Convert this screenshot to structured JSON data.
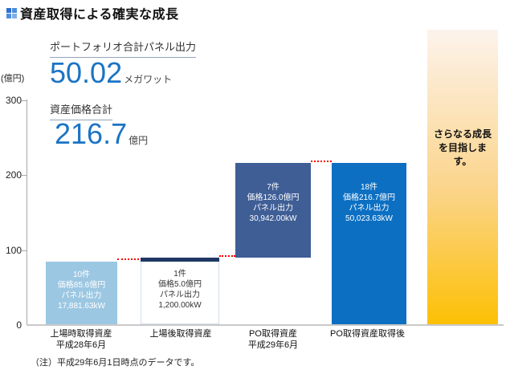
{
  "title": "資産取得による確実な成長",
  "summary": {
    "panel_output_label": "ポートフォリオ合計パネル出力",
    "panel_output_value": "50.02",
    "panel_output_unit": "メガワット",
    "asset_price_label": "資産価格合計",
    "asset_price_value": "216.7",
    "asset_price_unit": "億円"
  },
  "note": "（注）平成29年6月1日時点のデータです。",
  "chart_data": {
    "type": "bar",
    "subtype": "waterfall",
    "title": "資産取得による確実な成長",
    "axis_unit": "(億円)",
    "ylabel": "億円",
    "ylim": [
      0,
      300
    ],
    "yticks": [
      "0",
      "100",
      "200",
      "300"
    ],
    "grid": false,
    "connector_color": "#ff0000",
    "bars": [
      {
        "category": [
          "上場時取得資産",
          "平成28年6月"
        ],
        "base": 0,
        "top": 85.6,
        "value": 85.6,
        "color": "#9cc7e2",
        "text_color": "#ffffff",
        "lines": [
          "10件",
          "価格85.6億円",
          "パネル出力",
          "17,881.63kW"
        ]
      },
      {
        "category": [
          "上場後取得資産"
        ],
        "base": 85.6,
        "top": 90.6,
        "value": 5.0,
        "color": "#1f3864",
        "text_color": "#333333",
        "lines": [
          "1件",
          "価格5.0億円",
          "パネル出力",
          "1,200.00kW"
        ]
      },
      {
        "category": [
          "PO取得資産",
          "平成29年6月"
        ],
        "base": 90.6,
        "top": 216.6,
        "value": 126.0,
        "color": "#3f5e96",
        "text_color": "#ffffff",
        "lines": [
          "7件",
          "価格126.0億円",
          "パネル出力",
          "30,942.00kW"
        ]
      },
      {
        "category": [
          "PO取得資産取得後"
        ],
        "base": 0,
        "top": 216.7,
        "value": 216.7,
        "color": "#0d6fc2",
        "text_color": "#ffffff",
        "lines": [
          "18件",
          "価格216.7億円",
          "パネル出力",
          "50,023.63kW"
        ]
      }
    ],
    "future_bar": {
      "lines": [
        "さらなる成長",
        "を目指しま",
        "す。"
      ],
      "gradient_top": "#fdf3ec",
      "gradient_bottom": "#fcc004"
    }
  }
}
